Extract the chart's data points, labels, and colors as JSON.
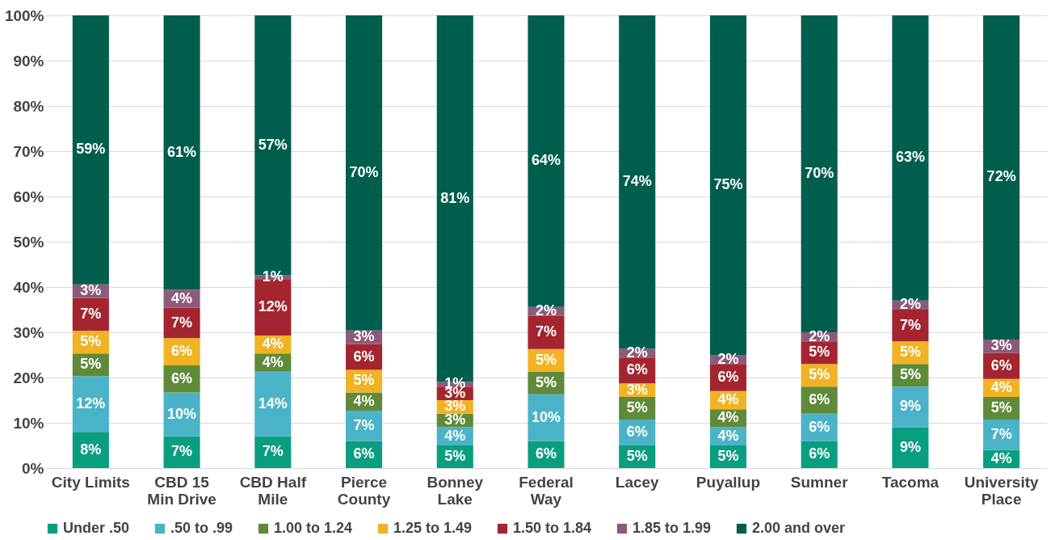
{
  "chart_data": {
    "type": "bar",
    "stacked": true,
    "categories": [
      "City Limits",
      "CBD 15\nMin Drive",
      "CBD Half\nMile",
      "Pierce\nCounty",
      "Bonney\nLake",
      "Federal\nWay",
      "Lacey",
      "Puyallup",
      "Sumner",
      "Tacoma",
      "University\nPlace"
    ],
    "ylim": [
      0,
      100
    ],
    "yticks": [
      {
        "value": 0,
        "label": "0%"
      },
      {
        "value": 10,
        "label": "10%"
      },
      {
        "value": 20,
        "label": "20%"
      },
      {
        "value": 30,
        "label": "30%"
      },
      {
        "value": 40,
        "label": "40%"
      },
      {
        "value": 50,
        "label": "50%"
      },
      {
        "value": 60,
        "label": "60%"
      },
      {
        "value": 70,
        "label": "70%"
      },
      {
        "value": 80,
        "label": "80%"
      },
      {
        "value": 90,
        "label": "90%"
      },
      {
        "value": 100,
        "label": "100%"
      }
    ],
    "grid": "y",
    "legend": "bottom",
    "series": [
      {
        "name": "Under .50",
        "color": "#0a9e80",
        "values": [
          8,
          7,
          7,
          6,
          5,
          6,
          5,
          5,
          6,
          9,
          4
        ],
        "value_labels": [
          "8%",
          "7%",
          "7%",
          "6%",
          "5%",
          "6%",
          "5%",
          "5%",
          "6%",
          "9%",
          "4%"
        ]
      },
      {
        "name": ".50 to .99",
        "color": "#4bb3c8",
        "values": [
          12.3,
          9.7,
          14.3,
          6.7,
          4,
          10.3,
          5.7,
          4,
          6,
          9,
          6.7
        ],
        "value_labels": [
          "12%",
          "10%",
          "14%",
          "7%",
          "4%",
          "10%",
          "6%",
          "4%",
          "6%",
          "9%",
          "7%"
        ]
      },
      {
        "name": "1.00 to 1.24",
        "color": "#5f8a3a",
        "values": [
          5,
          6,
          4,
          4,
          3,
          5,
          5,
          4,
          6,
          5,
          5
        ],
        "value_labels": [
          "5%",
          "6%",
          "4%",
          "4%",
          "3%",
          "5%",
          "5%",
          "4%",
          "6%",
          "5%",
          "5%"
        ]
      },
      {
        "name": "1.25 to 1.49",
        "color": "#f0b323",
        "values": [
          5,
          6,
          4,
          5,
          3,
          5,
          3,
          4,
          5,
          5,
          4
        ],
        "value_labels": [
          "5%",
          "6%",
          "4%",
          "5%",
          "3%",
          "5%",
          "3%",
          "4%",
          "5%",
          "5%",
          "4%"
        ]
      },
      {
        "name": "1.50 to 1.84",
        "color": "#a4252f",
        "values": [
          7.3,
          6.7,
          12.3,
          5.7,
          3,
          7.3,
          5.7,
          6,
          5,
          7,
          5.7
        ],
        "value_labels": [
          "7%",
          "7%",
          "12%",
          "6%",
          "3%",
          "7%",
          "6%",
          "6%",
          "5%",
          "7%",
          "6%"
        ]
      },
      {
        "name": "1.85 to 1.99",
        "color": "#8c5a7c",
        "values": [
          3,
          4,
          1,
          3,
          1,
          2,
          2,
          2,
          2,
          2,
          3
        ],
        "value_labels": [
          "3%",
          "4%",
          "1%",
          "3%",
          "1%",
          "2%",
          "2%",
          "2%",
          "2%",
          "2%",
          "3%"
        ]
      },
      {
        "name": "2.00 and over",
        "color": "#005e4d",
        "values": [
          59.4,
          60.6,
          57.4,
          69.6,
          81,
          64.4,
          73.6,
          75,
          70,
          63,
          71.6
        ],
        "value_labels": [
          "59%",
          "61%",
          "57%",
          "70%",
          "81%",
          "64%",
          "74%",
          "75%",
          "70%",
          "63%",
          "72%"
        ]
      }
    ]
  }
}
